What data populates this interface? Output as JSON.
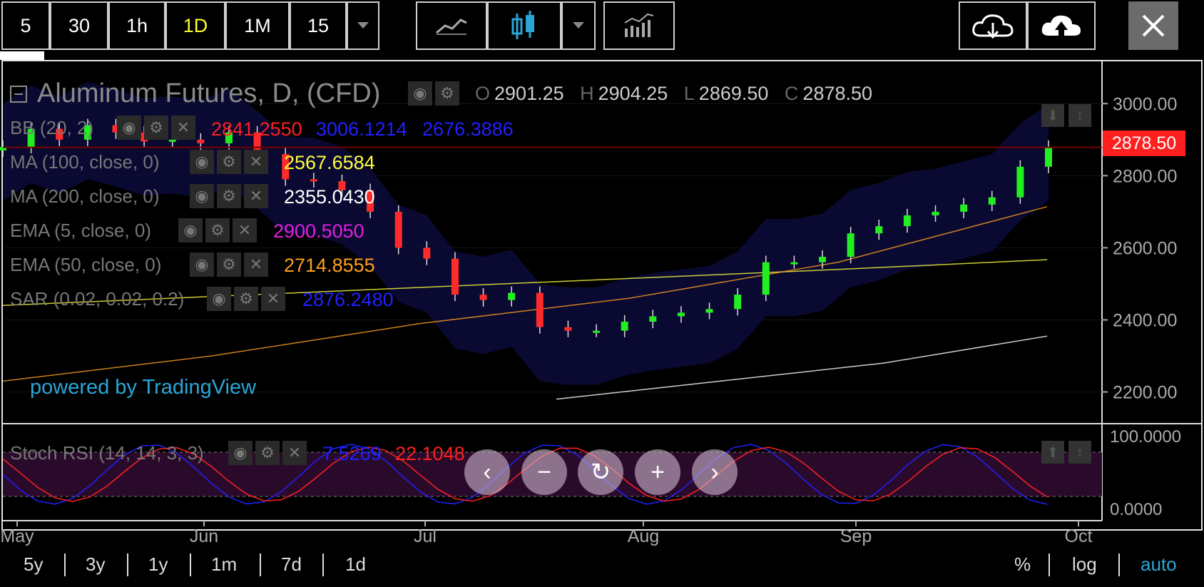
{
  "toolbar": {
    "intervals": [
      "5",
      "30",
      "1h",
      "1D",
      "1M",
      "15"
    ],
    "active_interval": "1D",
    "icons": [
      "dropdown-caret-icon",
      "line-chart-icon",
      "candlestick-icon",
      "dropdown-caret-icon",
      "indicators-icon",
      "cloud-download-icon",
      "cloud-upload-icon",
      "close-icon"
    ]
  },
  "legend": {
    "title": "Aluminum Futures, D, (CFD)",
    "ohlc": {
      "o_label": "O",
      "o": "2901.25",
      "h_label": "H",
      "h": "2904.25",
      "l_label": "L",
      "l": "2869.50",
      "c_label": "C",
      "c": "2878.50"
    },
    "indicators": [
      {
        "label": "BB (20, 2)",
        "values": [
          "2841.2550",
          "3006.1214",
          "2676.3886"
        ],
        "colors": [
          "#ff2020",
          "#2020ff",
          "#2020ff"
        ]
      },
      {
        "label": "MA (100, close, 0)",
        "values": [
          "2567.6584"
        ],
        "colors": [
          "#ffff40"
        ]
      },
      {
        "label": "MA (200, close, 0)",
        "values": [
          "2355.0430"
        ],
        "colors": [
          "#ffffff"
        ]
      },
      {
        "label": "EMA (5, close, 0)",
        "values": [
          "2900.5050"
        ],
        "colors": [
          "#e020e0"
        ]
      },
      {
        "label": "EMA (50, close, 0)",
        "values": [
          "2714.8555"
        ],
        "colors": [
          "#ff9f1f"
        ]
      },
      {
        "label": "SAR (0.02, 0.02, 0.2)",
        "values": [
          "2876.2480"
        ],
        "colors": [
          "#2020ff"
        ]
      }
    ],
    "stoch_label": "Stoch RSI (14, 14, 3, 3)",
    "stoch_values": [
      "7.5269",
      "22.1048"
    ],
    "stoch_colors": [
      "#2020ff",
      "#ff2020"
    ]
  },
  "watermark": "powered by TradingView",
  "price_axis": {
    "ticks": [
      "3000.00",
      "2800.00",
      "2600.00",
      "2400.00",
      "2200.00"
    ],
    "last_price": "2878.50",
    "stoch_ticks": [
      "100.0000",
      "0.0000"
    ]
  },
  "time_axis": {
    "labels": [
      "May",
      "Jun",
      "Jul",
      "Aug",
      "Sep",
      "Oct"
    ]
  },
  "zoom_controls": [
    "chevron-left-icon",
    "zoom-out-icon",
    "reset-icon",
    "zoom-in-icon",
    "chevron-right-icon"
  ],
  "ranges": [
    "5y",
    "3y",
    "1y",
    "1m",
    "7d",
    "1d"
  ],
  "scale_options": {
    "percent": "%",
    "log": "log",
    "auto": "auto"
  },
  "colors": {
    "up": "#22ee22",
    "down": "#ff2a2a",
    "accent": "#2aa6d6",
    "price_tag": "#ff1f1f"
  },
  "chart_data": {
    "type": "candlestick",
    "title": "Aluminum Futures, D, (CFD)",
    "ylim": [
      2120,
      3050
    ],
    "x_labels": [
      "May",
      "Jun",
      "Jul",
      "Aug",
      "Sep",
      "Oct"
    ],
    "series": [
      {
        "name": "Aluminum Futures, D, (CFD)",
        "values": [
          2880,
          2825,
          2740,
          2720,
          2700,
          2690,
          2660,
          2640,
          2575,
          2560,
          2560,
          2470,
          2430,
          2420,
          2410,
          2395,
          2370,
          2370,
          2380,
          2475,
          2455,
          2470,
          2570,
          2600,
          2700,
          2760,
          2785,
          2790,
          2860,
          2920,
          2890,
          2900,
          2895,
          2920,
          2940,
          2900,
          2930,
          2880
        ]
      },
      {
        "name": "MA (100, close, 0)",
        "values": [
          2440,
          2465,
          2490,
          2515,
          2540,
          2567
        ]
      },
      {
        "name": "MA (200, close, 0)",
        "values": [
          2180,
          2230,
          2280,
          2355
        ]
      },
      {
        "name": "EMA (50, close, 0)",
        "values": [
          2230,
          2300,
          2390,
          2460,
          2560,
          2714
        ]
      }
    ]
  }
}
